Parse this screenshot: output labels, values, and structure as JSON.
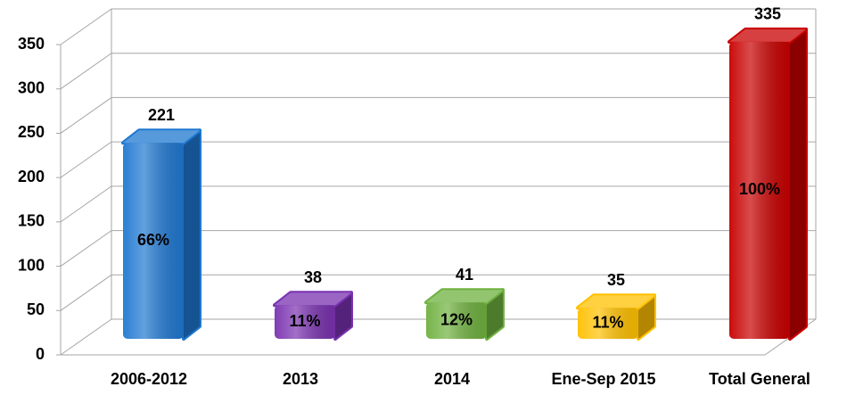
{
  "chart_data": {
    "type": "bar3d",
    "categories": [
      "2006-2012",
      "2013",
      "2014",
      "Ene-Sep 2015",
      "Total General"
    ],
    "values": [
      221,
      38,
      41,
      35,
      335
    ],
    "share_labels": [
      "66%",
      "11%",
      "12%",
      "11%",
      "100%"
    ],
    "colors": [
      "#1f78d1",
      "#7a32b0",
      "#6fb13f",
      "#ffc000",
      "#c80000"
    ],
    "ylim": [
      0,
      350
    ],
    "yticks": [
      0,
      50,
      100,
      150,
      200,
      250,
      300,
      350
    ],
    "grid": true
  }
}
